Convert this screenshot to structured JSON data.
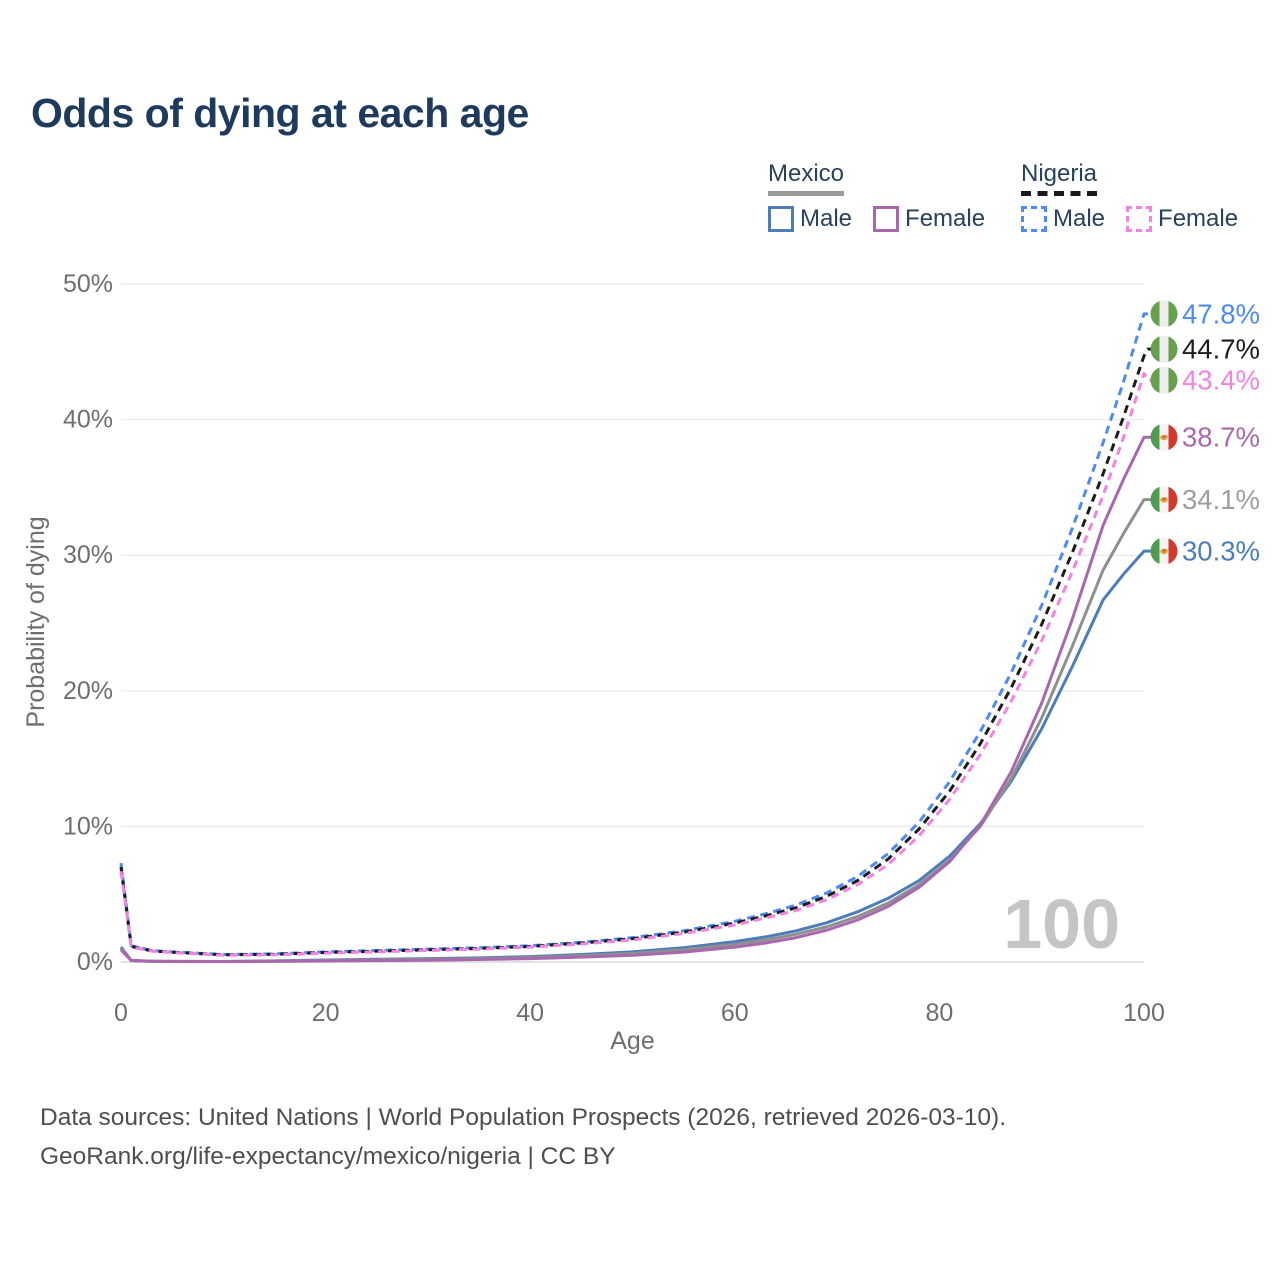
{
  "header": {
    "title": "Odds of dying at each age"
  },
  "legend": {
    "mexico": {
      "label": "Mexico",
      "male": "Male",
      "female": "Female"
    },
    "nigeria": {
      "label": "Nigeria",
      "male": "Male",
      "female": "Female"
    }
  },
  "watermark": "100",
  "footer": {
    "line1": "Data sources: United Nations | World Population Prospects (2026, retrieved 2026-03-10).",
    "line2": "GeoRank.org/life-expectancy/mexico/nigeria | CC BY"
  },
  "chart_data": {
    "type": "line",
    "title": "Odds of dying at each age",
    "xlabel": "Age",
    "ylabel": "Probability of dying",
    "xlim": [
      0,
      100
    ],
    "ylim": [
      0,
      50
    ],
    "x_ticks": [
      0,
      20,
      40,
      60,
      80,
      100
    ],
    "x_tick_labels": [
      "0",
      "20",
      "40",
      "60",
      "80",
      "100"
    ],
    "y_ticks": [
      0,
      10,
      20,
      30,
      40,
      50
    ],
    "y_tick_labels": [
      "0%",
      "10%",
      "20%",
      "30%",
      "40%",
      "50%"
    ],
    "grid": "horizontal",
    "grid_color": "#ececec",
    "axis_line_color": "#d9d9d9",
    "tick_text_color": "#6e6e6e",
    "watermark_color": "#c5c5c5",
    "legend_position": "top-right",
    "ages": [
      0,
      1,
      3,
      5,
      10,
      15,
      20,
      25,
      30,
      35,
      40,
      45,
      50,
      55,
      60,
      63,
      66,
      69,
      72,
      75,
      78,
      81,
      84,
      87,
      90,
      93,
      96,
      98,
      100
    ],
    "series": [
      {
        "id": "mexico-male",
        "name": "Mexico Male",
        "country": "Mexico",
        "sex": "Male",
        "style": "solid",
        "color": "#4d7db8",
        "label_color": "#4d7db8",
        "end_label": "30.3%",
        "end_value": 30.3,
        "flag": "mexico",
        "values": [
          1.1,
          0.12,
          0.06,
          0.05,
          0.04,
          0.08,
          0.15,
          0.2,
          0.25,
          0.3,
          0.4,
          0.55,
          0.75,
          1.05,
          1.5,
          1.85,
          2.3,
          2.9,
          3.7,
          4.7,
          6.0,
          7.8,
          10.2,
          13.3,
          17.2,
          21.8,
          26.7,
          28.6,
          30.3
        ]
      },
      {
        "id": "mexico-average",
        "name": "Mexico",
        "country": "Mexico",
        "sex": "",
        "style": "solid",
        "color": "#8f8f8f",
        "label_color": "#9e9e9e",
        "end_label": "34.1%",
        "end_value": 34.1,
        "flag": "mexico",
        "values": [
          1.0,
          0.11,
          0.055,
          0.045,
          0.035,
          0.065,
          0.12,
          0.16,
          0.2,
          0.25,
          0.33,
          0.46,
          0.63,
          0.9,
          1.3,
          1.62,
          2.05,
          2.6,
          3.35,
          4.35,
          5.7,
          7.5,
          10.0,
          13.5,
          18.0,
          23.3,
          28.9,
          31.6,
          34.1
        ]
      },
      {
        "id": "mexico-female",
        "name": "Mexico Female",
        "country": "Mexico",
        "sex": "Female",
        "style": "solid",
        "color": "#a968ae",
        "label_color": "#a968ae",
        "end_label": "38.7%",
        "end_value": 38.7,
        "flag": "mexico",
        "values": [
          0.9,
          0.1,
          0.05,
          0.04,
          0.03,
          0.045,
          0.07,
          0.1,
          0.13,
          0.18,
          0.25,
          0.36,
          0.5,
          0.73,
          1.1,
          1.4,
          1.8,
          2.35,
          3.1,
          4.1,
          5.5,
          7.4,
          10.1,
          14.0,
          19.1,
          25.3,
          32.2,
          35.6,
          38.7
        ]
      },
      {
        "id": "nigeria-male",
        "name": "Nigeria Male",
        "country": "Nigeria",
        "sex": "Male",
        "style": "dashed",
        "color": "#4c8bf2",
        "label_color": "#4c8bf2",
        "end_label": "47.8%",
        "end_value": 47.8,
        "flag": "nigeria",
        "values": [
          7.3,
          1.2,
          0.85,
          0.75,
          0.55,
          0.6,
          0.75,
          0.85,
          0.95,
          1.05,
          1.2,
          1.45,
          1.8,
          2.3,
          3.0,
          3.55,
          4.2,
          5.1,
          6.3,
          8.0,
          10.3,
          13.3,
          17.0,
          21.3,
          26.3,
          32.0,
          38.3,
          42.8,
          47.8
        ]
      },
      {
        "id": "nigeria-average",
        "name": "Nigeria",
        "country": "Nigeria",
        "sex": "",
        "style": "dashed",
        "color": "#1c1c1c",
        "label_color": "#1c1c1c",
        "end_label": "44.7%",
        "end_value": 44.7,
        "flag": "nigeria",
        "values": [
          7.0,
          1.15,
          0.82,
          0.72,
          0.53,
          0.57,
          0.7,
          0.8,
          0.9,
          1.0,
          1.15,
          1.4,
          1.72,
          2.2,
          2.87,
          3.4,
          4.0,
          4.85,
          6.0,
          7.6,
          9.8,
          12.6,
          16.1,
          20.2,
          24.9,
          30.2,
          36.0,
          40.2,
          44.7
        ]
      },
      {
        "id": "nigeria-female",
        "name": "Nigeria Female",
        "country": "Nigeria",
        "sex": "Female",
        "style": "dashed",
        "color": "#f283e2",
        "label_color": "#f283e2",
        "end_label": "43.4%",
        "end_value": 43.4,
        "flag": "nigeria",
        "values": [
          6.7,
          1.1,
          0.8,
          0.7,
          0.5,
          0.53,
          0.65,
          0.75,
          0.85,
          0.95,
          1.1,
          1.33,
          1.63,
          2.1,
          2.73,
          3.25,
          3.8,
          4.6,
          5.7,
          7.2,
          9.3,
          12.0,
          15.3,
          19.2,
          23.7,
          28.8,
          34.4,
          38.7,
          43.4
        ]
      }
    ]
  }
}
